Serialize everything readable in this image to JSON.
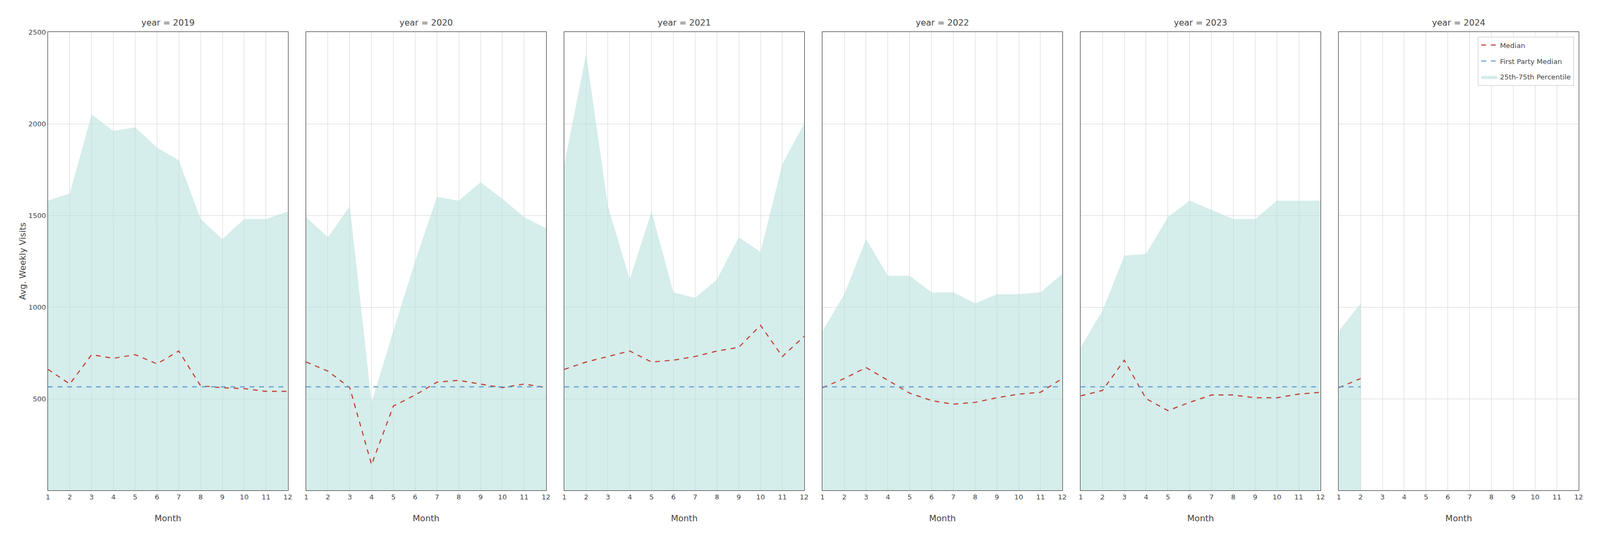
{
  "chart_data": [
    {
      "type": "line",
      "title": "year = 2019",
      "xlabel": "Month",
      "ylabel": "Avg. Weekly Visits",
      "x": [
        1,
        2,
        3,
        4,
        5,
        6,
        7,
        8,
        9,
        10,
        11,
        12
      ],
      "xlim": [
        1,
        12
      ],
      "xticks": [
        1,
        2,
        3,
        4,
        5,
        6,
        7,
        8,
        9,
        10,
        11,
        12
      ],
      "ylim": [
        0,
        2500
      ],
      "yticks": [
        500,
        1000,
        1500,
        2000,
        2500
      ],
      "grid": true,
      "series": [
        {
          "name": "Median",
          "color": "#c0392b",
          "line_style": "dashed",
          "values": [
            660,
            580,
            740,
            720,
            740,
            690,
            760,
            570,
            560,
            555,
            540,
            540
          ]
        },
        {
          "name": "First Party Median",
          "color": "#5b9bd5",
          "line_style": "dashed",
          "values": [
            565,
            565,
            565,
            565,
            565,
            565,
            565,
            565,
            565,
            565,
            565,
            565
          ]
        },
        {
          "name": "25th-75th Percentile",
          "type": "area",
          "color": "#b2dfdb",
          "lower": [
            0,
            0,
            0,
            0,
            0,
            0,
            0,
            0,
            0,
            0,
            0,
            0
          ],
          "values": [
            1580,
            1620,
            2050,
            1960,
            1980,
            1870,
            1800,
            1480,
            1370,
            1480,
            1480,
            1520
          ]
        }
      ]
    },
    {
      "type": "line",
      "title": "year = 2020",
      "xlabel": "Month",
      "tick_labels": "x",
      "x": [
        1,
        2,
        3,
        4,
        5,
        6,
        7,
        8,
        9,
        10,
        11,
        12
      ],
      "xlim": [
        1,
        12
      ],
      "xticks": [
        1,
        2,
        3,
        4,
        5,
        6,
        7,
        8,
        9,
        10,
        11,
        12
      ],
      "ylim": [
        0,
        2500
      ],
      "yticks": [
        500,
        1000,
        1500,
        2000,
        2500
      ],
      "grid": true,
      "series": [
        {
          "name": "Median",
          "color": "#c0392b",
          "line_style": "dashed",
          "values": [
            700,
            650,
            560,
            140,
            460,
            520,
            590,
            600,
            580,
            560,
            580,
            560
          ]
        },
        {
          "name": "First Party Median",
          "color": "#5b9bd5",
          "line_style": "dashed",
          "values": [
            565,
            565,
            565,
            565,
            565,
            565,
            565,
            565,
            565,
            565,
            565,
            565
          ]
        },
        {
          "name": "25th-75th Percentile",
          "type": "area",
          "color": "#b2dfdb",
          "lower": [
            0,
            0,
            0,
            0,
            0,
            0,
            0,
            0,
            0,
            0,
            0,
            0
          ],
          "values": [
            1490,
            1380,
            1550,
            480,
            870,
            1250,
            1600,
            1580,
            1680,
            1590,
            1490,
            1430
          ]
        }
      ]
    },
    {
      "type": "line",
      "title": "year = 2021",
      "xlabel": "Month",
      "tick_labels": "x",
      "x": [
        1,
        2,
        3,
        4,
        5,
        6,
        7,
        8,
        9,
        10,
        11,
        12
      ],
      "xlim": [
        1,
        12
      ],
      "xticks": [
        1,
        2,
        3,
        4,
        5,
        6,
        7,
        8,
        9,
        10,
        11,
        12
      ],
      "ylim": [
        0,
        2500
      ],
      "yticks": [
        500,
        1000,
        1500,
        2000,
        2500
      ],
      "grid": true,
      "series": [
        {
          "name": "Median",
          "color": "#c0392b",
          "line_style": "dashed",
          "values": [
            660,
            700,
            730,
            760,
            700,
            710,
            730,
            760,
            780,
            900,
            730,
            840
          ]
        },
        {
          "name": "First Party Median",
          "color": "#5b9bd5",
          "line_style": "dashed",
          "values": [
            565,
            565,
            565,
            565,
            565,
            565,
            565,
            565,
            565,
            565,
            565,
            565
          ]
        },
        {
          "name": "25th-75th Percentile",
          "type": "area",
          "color": "#b2dfdb",
          "lower": [
            0,
            0,
            0,
            0,
            0,
            0,
            0,
            0,
            0,
            0,
            0,
            0
          ],
          "values": [
            1780,
            2380,
            1550,
            1150,
            1520,
            1080,
            1050,
            1150,
            1380,
            1300,
            1780,
            2000
          ]
        }
      ]
    },
    {
      "type": "line",
      "title": "year = 2022",
      "xlabel": "Month",
      "tick_labels": "x",
      "x": [
        1,
        2,
        3,
        4,
        5,
        6,
        7,
        8,
        9,
        10,
        11,
        12
      ],
      "xlim": [
        1,
        12
      ],
      "xticks": [
        1,
        2,
        3,
        4,
        5,
        6,
        7,
        8,
        9,
        10,
        11,
        12
      ],
      "ylim": [
        0,
        2500
      ],
      "yticks": [
        500,
        1000,
        1500,
        2000,
        2500
      ],
      "grid": true,
      "series": [
        {
          "name": "Median",
          "color": "#c0392b",
          "line_style": "dashed",
          "values": [
            560,
            610,
            670,
            600,
            530,
            490,
            470,
            480,
            505,
            525,
            535,
            610
          ]
        },
        {
          "name": "First Party Median",
          "color": "#5b9bd5",
          "line_style": "dashed",
          "values": [
            565,
            565,
            565,
            565,
            565,
            565,
            565,
            565,
            565,
            565,
            565,
            565
          ]
        },
        {
          "name": "25th-75th Percentile",
          "type": "area",
          "color": "#b2dfdb",
          "lower": [
            0,
            0,
            0,
            0,
            0,
            0,
            0,
            0,
            0,
            0,
            0,
            0
          ],
          "values": [
            870,
            1070,
            1370,
            1170,
            1170,
            1080,
            1080,
            1020,
            1070,
            1070,
            1080,
            1180
          ]
        }
      ]
    },
    {
      "type": "line",
      "title": "year = 2023",
      "xlabel": "Month",
      "tick_labels": "x",
      "x": [
        1,
        2,
        3,
        4,
        5,
        6,
        7,
        8,
        9,
        10,
        11,
        12
      ],
      "xlim": [
        1,
        12
      ],
      "xticks": [
        1,
        2,
        3,
        4,
        5,
        6,
        7,
        8,
        9,
        10,
        11,
        12
      ],
      "ylim": [
        0,
        2500
      ],
      "yticks": [
        500,
        1000,
        1500,
        2000,
        2500
      ],
      "grid": true,
      "series": [
        {
          "name": "Median",
          "color": "#c0392b",
          "line_style": "dashed",
          "values": [
            515,
            545,
            710,
            500,
            435,
            480,
            520,
            520,
            505,
            505,
            525,
            535
          ]
        },
        {
          "name": "First Party Median",
          "color": "#5b9bd5",
          "line_style": "dashed",
          "values": [
            565,
            565,
            565,
            565,
            565,
            565,
            565,
            565,
            565,
            565,
            565,
            565
          ]
        },
        {
          "name": "25th-75th Percentile",
          "type": "area",
          "color": "#b2dfdb",
          "lower": [
            0,
            0,
            0,
            0,
            0,
            0,
            0,
            0,
            0,
            0,
            0,
            0
          ],
          "values": [
            780,
            980,
            1280,
            1290,
            1490,
            1580,
            1530,
            1480,
            1480,
            1580,
            1580,
            1580
          ]
        }
      ]
    },
    {
      "type": "line",
      "title": "year = 2024",
      "xlabel": "Month",
      "tick_labels": "x",
      "legend": "upper right",
      "x": [
        1,
        2,
        3,
        4,
        5,
        6,
        7,
        8,
        9,
        10,
        11,
        12
      ],
      "xlim": [
        1,
        12
      ],
      "xticks": [
        1,
        2,
        3,
        4,
        5,
        6,
        7,
        8,
        9,
        10,
        11,
        12
      ],
      "ylim": [
        0,
        2500
      ],
      "yticks": [
        500,
        1000,
        1500,
        2000,
        2500
      ],
      "grid": true,
      "series": [
        {
          "name": "Median",
          "color": "#c0392b",
          "line_style": "dashed",
          "values": [
            560,
            610,
            null,
            null,
            null,
            null,
            null,
            null,
            null,
            null,
            null,
            null
          ]
        },
        {
          "name": "First Party Median",
          "color": "#5b9bd5",
          "line_style": "dashed",
          "values": [
            565,
            565,
            null,
            null,
            null,
            null,
            null,
            null,
            null,
            null,
            null,
            null
          ]
        },
        {
          "name": "25th-75th Percentile",
          "type": "area",
          "color": "#b2dfdb",
          "lower": [
            0,
            0,
            null,
            null,
            null,
            null,
            null,
            null,
            null,
            null,
            null,
            null
          ],
          "values": [
            870,
            1020,
            null,
            null,
            null,
            null,
            null,
            null,
            null,
            null,
            null,
            null
          ]
        }
      ]
    }
  ]
}
